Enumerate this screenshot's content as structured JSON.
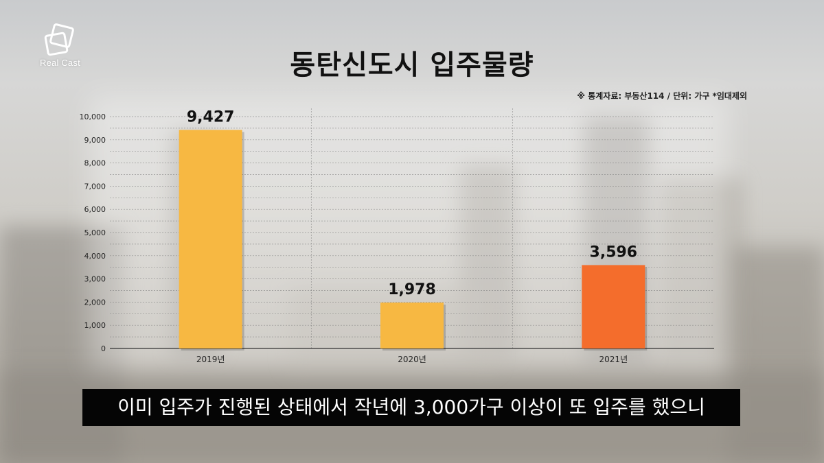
{
  "brand": {
    "logo_text": "Real Cast"
  },
  "header": {
    "title": "동탄신도시 입주물량",
    "source_note": "※ 통계자료: 부동산114 / 단위: 가구 *임대제외"
  },
  "chart_data": {
    "type": "bar",
    "categories": [
      "2019년",
      "2020년",
      "2021년"
    ],
    "values": [
      9427,
      1978,
      3596
    ],
    "value_labels": [
      "9,427",
      "1,978",
      "3,596"
    ],
    "bar_colors": [
      "#f7b842",
      "#f7b842",
      "#f46d2c"
    ],
    "title": "동탄신도시 입주물량",
    "ylim": [
      0,
      10000
    ],
    "y_ticks": [
      0,
      1000,
      2000,
      3000,
      4000,
      5000,
      6000,
      7000,
      8000,
      9000,
      10000
    ],
    "y_tick_labels": [
      "0",
      "1,000",
      "2,000",
      "3,000",
      "4,000",
      "5,000",
      "6,000",
      "7,000",
      "8,000",
      "9,000",
      "10,000"
    ],
    "grid": true,
    "legend": "none"
  },
  "caption": {
    "text": "이미 입주가 진행된 상태에서 작년에 3,000가구 이상이 또 입주를 했으니"
  }
}
